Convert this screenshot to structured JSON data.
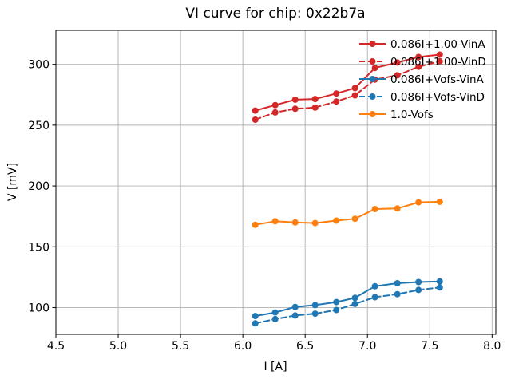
{
  "title": "VI curve for chip: 0x22b7a",
  "chart_data": {
    "type": "line",
    "title": "VI curve for chip: 0x22b7a",
    "xlabel": "I [A]",
    "ylabel": "V [mV]",
    "xlim": [
      4.5,
      8.03
    ],
    "ylim": [
      78,
      328
    ],
    "xticks": [
      4.5,
      5.0,
      5.5,
      6.0,
      6.5,
      7.0,
      7.5,
      8.0
    ],
    "xtick_labels": [
      "4.5",
      "5.0",
      "5.5",
      "6.0",
      "6.5",
      "7.0",
      "7.5",
      "8.0"
    ],
    "yticks": [
      100,
      150,
      200,
      250,
      300
    ],
    "ytick_labels": [
      "100",
      "150",
      "200",
      "250",
      "300"
    ],
    "grid": true,
    "grid_color": "#b0b0b0",
    "legend_position": "upper right",
    "legend_frame": false,
    "x": [
      6.1,
      6.26,
      6.42,
      6.58,
      6.75,
      6.9,
      7.06,
      7.24,
      7.41,
      7.58
    ],
    "series": [
      {
        "name": "0.086I+1.00-VinA",
        "color": "#d62728",
        "style": "solid",
        "marker": "circle",
        "values": [
          262,
          266.5,
          271,
          271.5,
          276,
          280.5,
          297,
          301.5,
          306,
          308
        ]
      },
      {
        "name": "0.086I+1.00-VinD",
        "color": "#d62728",
        "style": "dashed",
        "marker": "circle",
        "values": [
          254.5,
          260.5,
          263.5,
          264.5,
          269.5,
          274.5,
          287.5,
          291,
          298,
          302.5
        ]
      },
      {
        "name": "0.086I+Vofs-VinA",
        "color": "#1f77b4",
        "style": "solid",
        "marker": "circle",
        "values": [
          93,
          96,
          100.5,
          102,
          104.5,
          108,
          117.5,
          120,
          121,
          121.5
        ]
      },
      {
        "name": "0.086I+Vofs-VinD",
        "color": "#1f77b4",
        "style": "dashed",
        "marker": "circle",
        "values": [
          87,
          90.5,
          93.5,
          95,
          98,
          103,
          108.5,
          111,
          114.5,
          116.5
        ]
      },
      {
        "name": "1.0-Vofs",
        "color": "#ff7f0e",
        "style": "solid",
        "marker": "circle",
        "values": [
          168,
          171,
          170,
          169.5,
          171.5,
          173,
          181,
          181.5,
          186.5,
          187
        ]
      }
    ]
  }
}
